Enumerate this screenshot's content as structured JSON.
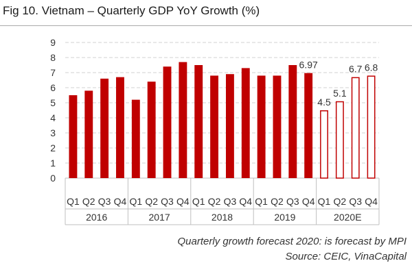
{
  "chart_data": {
    "type": "bar",
    "title": "Fig 10. Vietnam – Quarterly GDP YoY Growth (%)",
    "xlabel": "",
    "ylabel": "",
    "ylim": [
      0,
      9
    ],
    "yticks": [
      "0",
      "1",
      "2",
      "3",
      "4",
      "5",
      "6",
      "7",
      "8",
      "9"
    ],
    "grid": true,
    "groups": [
      {
        "label": "2016",
        "categories": [
          "Q1",
          "Q2",
          "Q3",
          "Q4"
        ],
        "values": [
          5.5,
          5.8,
          6.6,
          6.7
        ],
        "labels": [
          "",
          "",
          "",
          ""
        ],
        "style": "actual"
      },
      {
        "label": "2017",
        "categories": [
          "Q1",
          "Q2",
          "Q3",
          "Q4"
        ],
        "values": [
          5.2,
          6.4,
          7.4,
          7.7
        ],
        "labels": [
          "",
          "",
          "",
          ""
        ],
        "style": "actual"
      },
      {
        "label": "2018",
        "categories": [
          "Q1",
          "Q2",
          "Q3",
          "Q4"
        ],
        "values": [
          7.5,
          6.8,
          6.9,
          7.3
        ],
        "labels": [
          "",
          "",
          "",
          ""
        ],
        "style": "actual"
      },
      {
        "label": "2019",
        "categories": [
          "Q1",
          "Q2",
          "Q3",
          "Q4"
        ],
        "values": [
          6.8,
          6.8,
          7.5,
          6.97
        ],
        "labels": [
          "",
          "",
          "",
          "6.97"
        ],
        "style": "actual"
      },
      {
        "label": "2020E",
        "categories": [
          "Q1",
          "Q2",
          "Q3",
          "Q4"
        ],
        "values": [
          4.5,
          5.1,
          6.7,
          6.8
        ],
        "labels": [
          "4.5",
          "5.1",
          "6.7",
          "6.8"
        ],
        "style": "forecast"
      }
    ],
    "colors": {
      "actual_fill": "#c00000",
      "forecast_stroke": "#c00000",
      "forecast_fill": "#ffffff",
      "grid": "#d0d0d0",
      "axis": "#bfbfbf"
    }
  },
  "notes": {
    "forecast": "Quarterly growth forecast 2020: is forecast by MPI",
    "source": "Source: CEIC, VinaCapital"
  }
}
